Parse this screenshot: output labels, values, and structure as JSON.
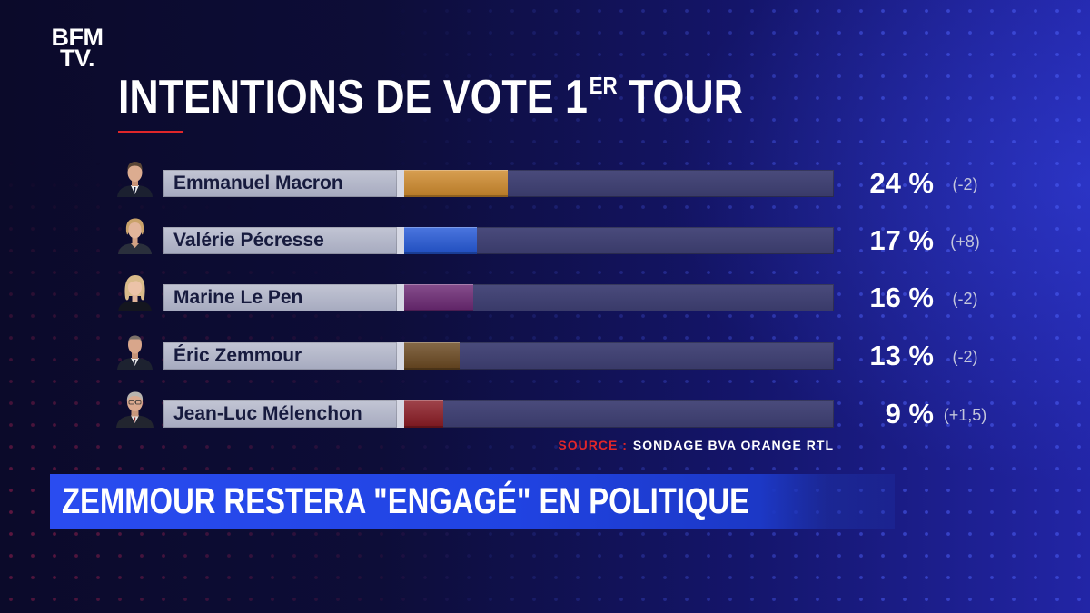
{
  "channel_logo": {
    "line1": "BFM",
    "line2": "TV."
  },
  "chart_data": {
    "type": "bar",
    "orientation": "horizontal",
    "title": "INTENTIONS DE VOTE 1ER TOUR",
    "title_superscript": "ER",
    "categories": [
      "Emmanuel Macron",
      "Valérie Pécresse",
      "Marine Le Pen",
      "Éric Zemmour",
      "Jean-Luc Mélenchon"
    ],
    "values": [
      24,
      17,
      16,
      13,
      9
    ],
    "value_labels": [
      "24 %",
      "17 %",
      "16 %",
      "13 %",
      "9 %"
    ],
    "changes": [
      "(-2)",
      "(+8)",
      "(-2)",
      "(-2)",
      "(+1,5)"
    ],
    "colors": [
      "#cf8a2c",
      "#2458d8",
      "#6b2773",
      "#6a4820",
      "#8a1a23"
    ],
    "xlim": [
      0,
      100
    ],
    "grid": false,
    "legend": "none"
  },
  "source": {
    "label": "SOURCE :",
    "text": "SONDAGE BVA ORANGE RTL"
  },
  "banner": {
    "headline": "ZEMMOUR RESTERA \"ENGAGÉ\" EN POLITIQUE"
  },
  "theme": {
    "accent_red": "#e0262a",
    "banner_blue": "#2247e6"
  }
}
